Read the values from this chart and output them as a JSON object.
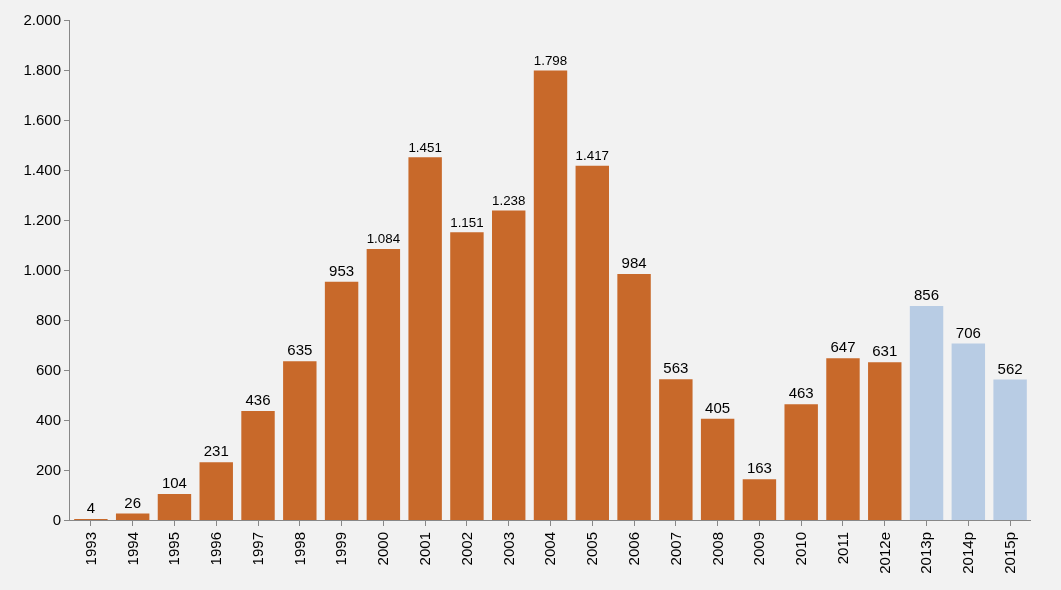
{
  "chart_data": {
    "type": "bar",
    "categories": [
      "1993",
      "1994",
      "1995",
      "1996",
      "1997",
      "1998",
      "1999",
      "2000",
      "2001",
      "2002",
      "2003",
      "2004",
      "2005",
      "2006",
      "2007",
      "2008",
      "2009",
      "2010",
      "2011",
      "2012e",
      "2013p",
      "2014p",
      "2015p"
    ],
    "values": [
      4,
      26,
      104,
      231,
      436,
      635,
      953,
      1084,
      1451,
      1151,
      1238,
      1798,
      1417,
      984,
      563,
      405,
      163,
      463,
      647,
      631,
      856,
      706,
      562
    ],
    "value_labels": [
      "4",
      "26",
      "104",
      "231",
      "436",
      "635",
      "953",
      "1.084",
      "1.451",
      "1.151",
      "1.238",
      "1.798",
      "1.417",
      "984",
      "563",
      "405",
      "163",
      "463",
      "647",
      "631",
      "856",
      "706",
      "562"
    ],
    "colors": [
      "#c8692a",
      "#c8692a",
      "#c8692a",
      "#c8692a",
      "#c8692a",
      "#c8692a",
      "#c8692a",
      "#c8692a",
      "#c8692a",
      "#c8692a",
      "#c8692a",
      "#c8692a",
      "#c8692a",
      "#c8692a",
      "#c8692a",
      "#c8692a",
      "#c8692a",
      "#c8692a",
      "#c8692a",
      "#c8692a",
      "#b8cce4",
      "#b8cce4",
      "#b8cce4"
    ],
    "ylim": [
      0,
      2000
    ],
    "yticks": [
      {
        "value": 0,
        "label": "0"
      },
      {
        "value": 200,
        "label": "200"
      },
      {
        "value": 400,
        "label": "400"
      },
      {
        "value": 600,
        "label": "600"
      },
      {
        "value": 800,
        "label": "800"
      },
      {
        "value": 1000,
        "label": "1.000"
      },
      {
        "value": 1200,
        "label": "1.200"
      },
      {
        "value": 1400,
        "label": "1.400"
      },
      {
        "value": 1600,
        "label": "1.600"
      },
      {
        "value": 1800,
        "label": "1.800"
      },
      {
        "value": 2000,
        "label": "2.000"
      }
    ],
    "grid": false
  }
}
